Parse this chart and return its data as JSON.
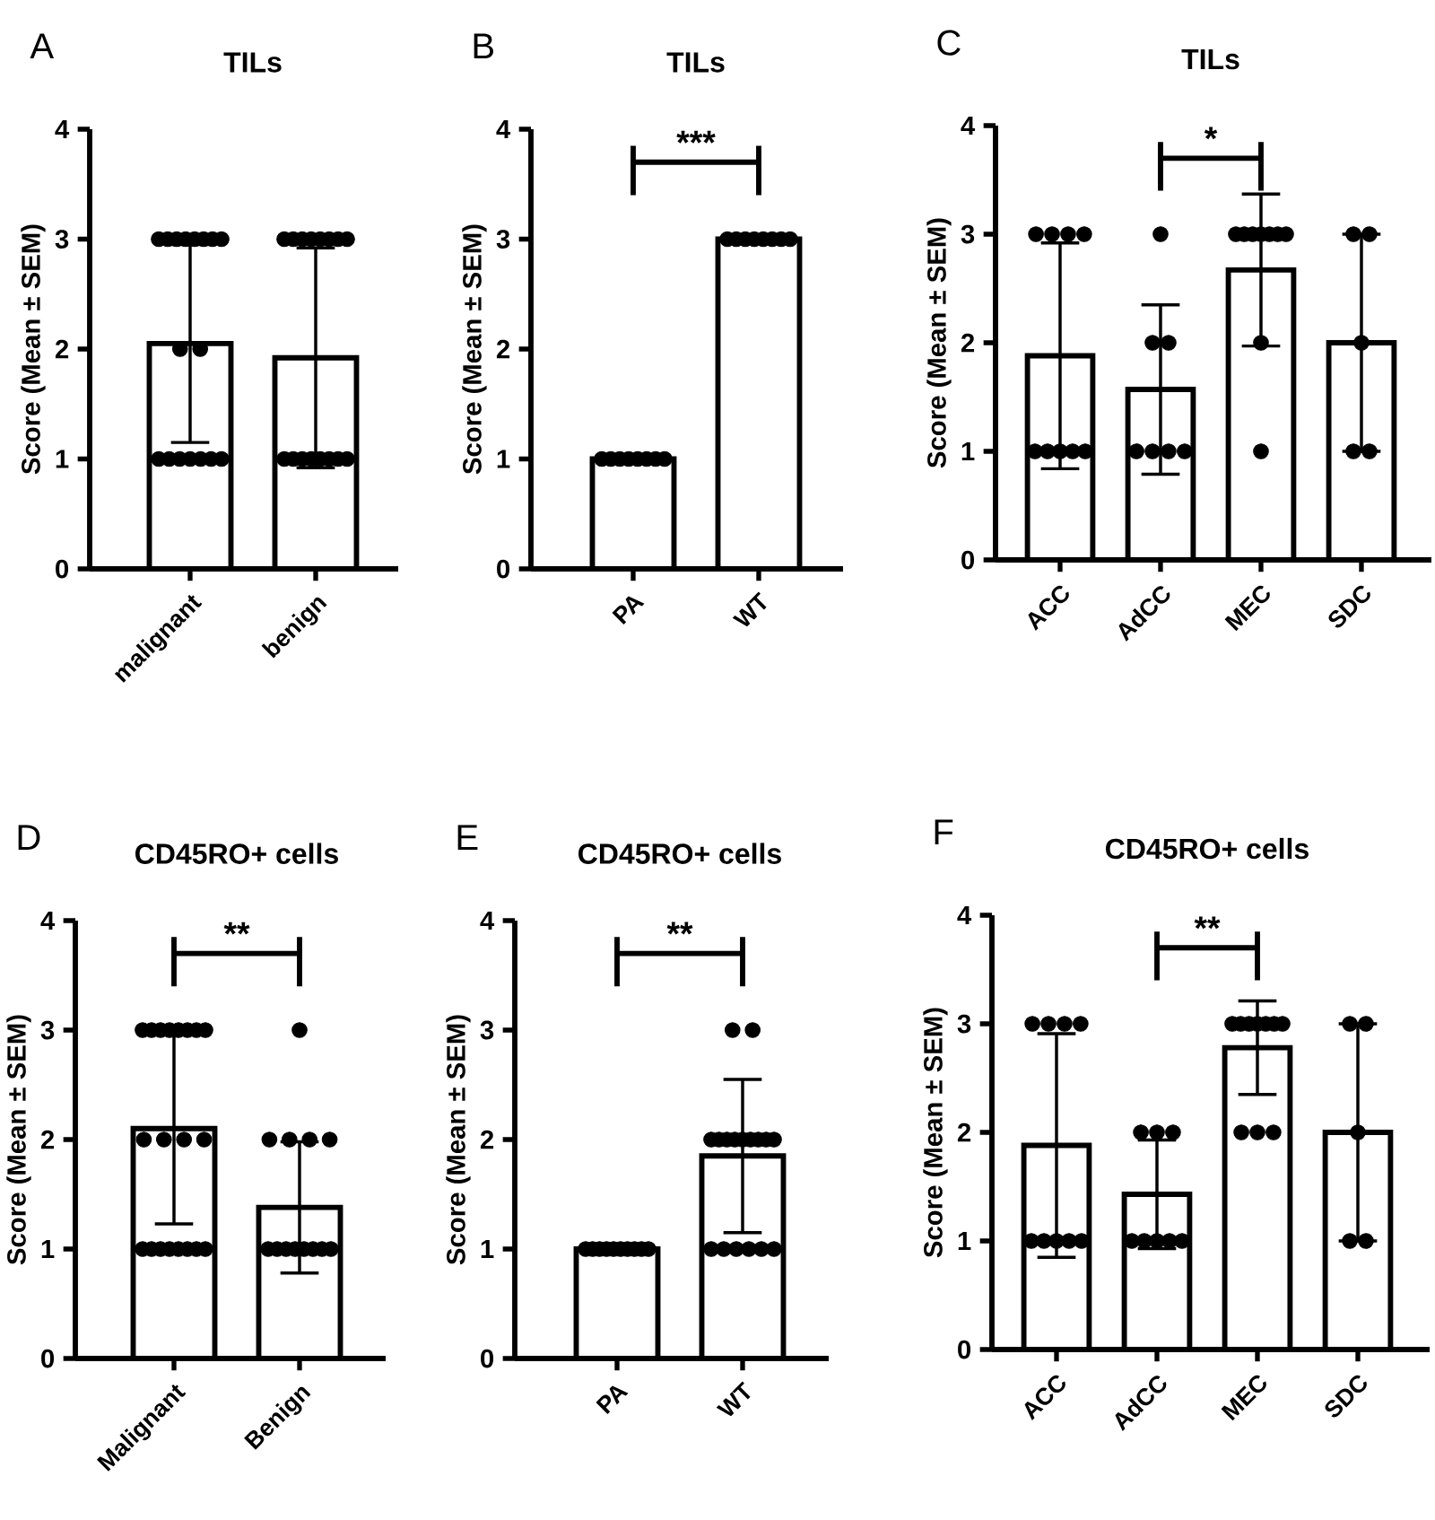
{
  "chart_data": [
    {
      "type": "bar",
      "title": "TILs",
      "ylabel": "Score (Mean ± SEM)",
      "categories": [
        "malignant",
        "benign"
      ],
      "ylim": [
        0,
        4
      ],
      "yticks": [
        0,
        1,
        2,
        3,
        4
      ],
      "annotations": [
        "A"
      ],
      "series": [
        {
          "color": "#ffffff",
          "values": [
            2.05,
            1.92
          ],
          "errors": [
            0.9,
            1.0
          ]
        },
        {
          "type": "scatter",
          "color": "#000000",
          "x": [
            "malignant",
            "malignant",
            "malignant",
            "malignant",
            "malignant",
            "malignant",
            "malignant",
            "malignant",
            "malignant",
            "malignant",
            "malignant",
            "malignant",
            "malignant",
            "malignant",
            "malignant",
            "malignant",
            "malignant",
            "benign",
            "benign",
            "benign",
            "benign",
            "benign",
            "benign",
            "benign",
            "benign",
            "benign",
            "benign",
            "benign",
            "benign",
            "benign",
            "benign",
            "benign",
            "benign"
          ],
          "values": [
            3,
            3,
            3,
            3,
            3,
            3,
            3,
            3,
            2,
            2,
            1,
            1,
            1,
            1,
            1,
            1,
            1,
            3,
            3,
            3,
            3,
            3,
            3,
            3,
            3,
            1,
            1,
            1,
            1,
            1,
            1,
            1,
            1
          ]
        }
      ]
    },
    {
      "type": "bar",
      "title": "TILs",
      "ylabel": "Score (Mean ± SEM)",
      "categories": [
        "PA",
        "WT"
      ],
      "ylim": [
        0,
        4
      ],
      "yticks": [
        0,
        1,
        2,
        3,
        4
      ],
      "annotations": [
        "B",
        "***"
      ],
      "series": [
        {
          "color": "#ffffff",
          "values": [
            1.0,
            3.0
          ]
        },
        {
          "type": "scatter",
          "color": "#000000",
          "x": [
            "PA",
            "PA",
            "PA",
            "PA",
            "PA",
            "PA",
            "PA",
            "PA",
            "WT",
            "WT",
            "WT",
            "WT",
            "WT",
            "WT",
            "WT",
            "WT"
          ],
          "values": [
            1,
            1,
            1,
            1,
            1,
            1,
            1,
            1,
            3,
            3,
            3,
            3,
            3,
            3,
            3,
            3
          ]
        }
      ]
    },
    {
      "type": "bar",
      "title": "TILs",
      "ylabel": "Score (Mean ± SEM)",
      "categories": [
        "ACC",
        "AdCC",
        "MEC",
        "SDC"
      ],
      "ylim": [
        0,
        4
      ],
      "yticks": [
        0,
        1,
        2,
        3,
        4
      ],
      "annotations": [
        "C",
        "*"
      ],
      "series": [
        {
          "color": "#ffffff",
          "values": [
            1.88,
            1.57,
            2.67,
            2.0
          ],
          "errors": [
            1.04,
            0.78,
            0.7,
            1.0
          ]
        },
        {
          "type": "scatter",
          "color": "#000000",
          "x": [
            "ACC",
            "ACC",
            "ACC",
            "ACC",
            "ACC",
            "ACC",
            "ACC",
            "ACC",
            "ACC",
            "AdCC",
            "AdCC",
            "AdCC",
            "AdCC",
            "AdCC",
            "AdCC",
            "AdCC",
            "MEC",
            "MEC",
            "MEC",
            "MEC",
            "MEC",
            "MEC",
            "MEC",
            "MEC",
            "MEC",
            "SDC",
            "SDC",
            "SDC",
            "SDC",
            "SDC"
          ],
          "values": [
            3,
            3,
            3,
            3,
            1,
            1,
            1,
            1,
            1,
            3,
            2,
            2,
            1,
            1,
            1,
            1,
            3,
            3,
            3,
            3,
            3,
            3,
            3,
            2,
            1,
            3,
            3,
            2,
            1,
            1
          ]
        }
      ]
    },
    {
      "type": "bar",
      "title": "CD45RO+ cells",
      "ylabel": "Score (Mean ± SEM)",
      "categories": [
        "Malignant",
        "Benign"
      ],
      "ylim": [
        0,
        4
      ],
      "yticks": [
        0,
        1,
        2,
        3,
        4
      ],
      "annotations": [
        "D",
        "**"
      ],
      "series": [
        {
          "color": "#ffffff",
          "values": [
            2.1,
            1.38
          ],
          "errors": [
            0.87,
            0.6
          ]
        },
        {
          "type": "scatter",
          "color": "#000000",
          "x": [
            "Malignant",
            "Malignant",
            "Malignant",
            "Malignant",
            "Malignant",
            "Malignant",
            "Malignant",
            "Malignant",
            "Malignant",
            "Malignant",
            "Malignant",
            "Malignant",
            "Malignant",
            "Malignant",
            "Malignant",
            "Malignant",
            "Malignant",
            "Malignant",
            "Malignant",
            "Malignant",
            "Benign",
            "Benign",
            "Benign",
            "Benign",
            "Benign",
            "Benign",
            "Benign",
            "Benign",
            "Benign",
            "Benign",
            "Benign",
            "Benign",
            "Benign"
          ],
          "values": [
            3,
            3,
            3,
            3,
            3,
            3,
            3,
            3,
            2,
            2,
            2,
            2,
            1,
            1,
            1,
            1,
            1,
            1,
            1,
            1,
            3,
            2,
            2,
            2,
            2,
            1,
            1,
            1,
            1,
            1,
            1,
            1,
            1
          ]
        }
      ]
    },
    {
      "type": "bar",
      "title": "CD45RO+ cells",
      "ylabel": "Score (Mean ± SEM)",
      "categories": [
        "PA",
        "WT"
      ],
      "ylim": [
        0,
        4
      ],
      "yticks": [
        0,
        1,
        2,
        3,
        4
      ],
      "annotations": [
        "E",
        "**"
      ],
      "series": [
        {
          "color": "#ffffff",
          "values": [
            1.0,
            1.85
          ],
          "errors": [
            null,
            0.7
          ]
        },
        {
          "type": "scatter",
          "color": "#000000",
          "x": [
            "PA",
            "PA",
            "PA",
            "PA",
            "PA",
            "PA",
            "PA",
            "PA",
            "PA",
            "PA",
            "WT",
            "WT",
            "WT",
            "WT",
            "WT",
            "WT",
            "WT",
            "WT",
            "WT",
            "WT",
            "WT",
            "WT",
            "WT",
            "WT",
            "WT",
            "WT",
            "WT"
          ],
          "values": [
            1,
            1,
            1,
            1,
            1,
            1,
            1,
            1,
            1,
            1,
            3,
            3,
            2,
            2,
            2,
            2,
            2,
            2,
            2,
            2,
            2,
            1,
            1,
            1,
            1,
            1,
            1
          ]
        }
      ]
    },
    {
      "type": "bar",
      "title": "CD45RO+ cells",
      "ylabel": "Score (Mean ± SEM)",
      "categories": [
        "ACC",
        "AdCC",
        "MEC",
        "SDC"
      ],
      "ylim": [
        0,
        4
      ],
      "yticks": [
        0,
        1,
        2,
        3,
        4
      ],
      "annotations": [
        "F",
        "**"
      ],
      "series": [
        {
          "color": "#ffffff",
          "values": [
            1.88,
            1.43,
            2.78,
            2.0
          ],
          "errors": [
            1.03,
            0.5,
            0.43,
            1.0
          ]
        },
        {
          "type": "scatter",
          "color": "#000000",
          "x": [
            "ACC",
            "ACC",
            "ACC",
            "ACC",
            "ACC",
            "ACC",
            "ACC",
            "ACC",
            "ACC",
            "AdCC",
            "AdCC",
            "AdCC",
            "AdCC",
            "AdCC",
            "AdCC",
            "AdCC",
            "AdCC",
            "MEC",
            "MEC",
            "MEC",
            "MEC",
            "MEC",
            "MEC",
            "MEC",
            "MEC",
            "MEC",
            "MEC",
            "SDC",
            "SDC",
            "SDC",
            "SDC",
            "SDC"
          ],
          "values": [
            3,
            3,
            3,
            3,
            1,
            1,
            1,
            1,
            1,
            2,
            2,
            2,
            1,
            1,
            1,
            1,
            1,
            3,
            3,
            3,
            3,
            3,
            3,
            3,
            2,
            2,
            2,
            3,
            3,
            2,
            1,
            1
          ]
        }
      ]
    }
  ]
}
